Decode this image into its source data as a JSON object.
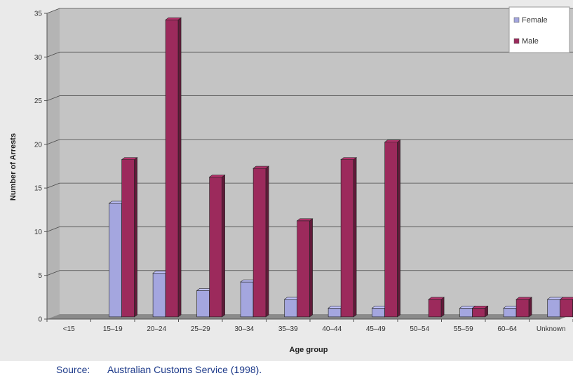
{
  "chart_data": {
    "type": "bar",
    "title": "",
    "xlabel": "Age group",
    "ylabel": "Number of Arrests",
    "categories": [
      "<15",
      "15–19",
      "20–24",
      "25–29",
      "30–34",
      "35–39",
      "40–44",
      "45–49",
      "50–54",
      "55–59",
      "60–64",
      "Unknown"
    ],
    "series": [
      {
        "name": "Female",
        "values": [
          0,
          13,
          5,
          3,
          4,
          2,
          1,
          1,
          0,
          1,
          1,
          2
        ]
      },
      {
        "name": "Male",
        "values": [
          0,
          18,
          34,
          16,
          17,
          11,
          18,
          20,
          2,
          1,
          2,
          2
        ]
      }
    ],
    "ylim": [
      0,
      35
    ],
    "yticks": [
      "0",
      "5",
      "10",
      "15",
      "20",
      "25",
      "30",
      "35"
    ],
    "grid": true,
    "legend_position": "top-right",
    "colors": {
      "Female": "#a4a6df",
      "Male": "#9c2a5c"
    }
  },
  "source": {
    "label": "Source:",
    "text": "Australian Customs Service (1998)."
  }
}
